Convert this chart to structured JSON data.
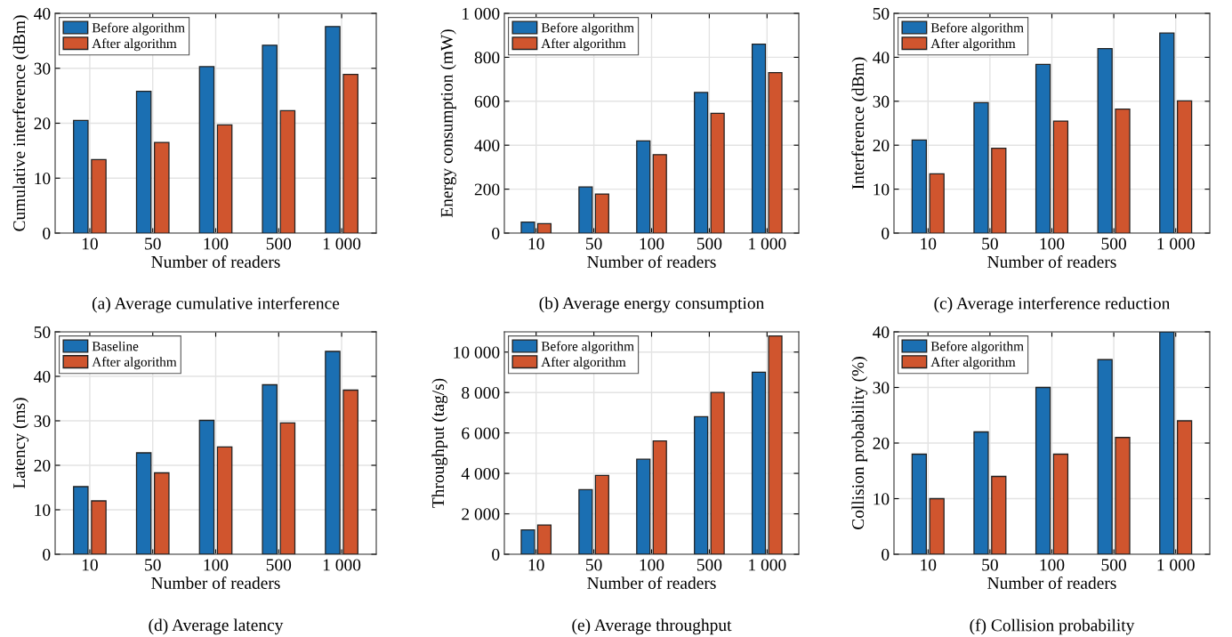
{
  "chart_data": [
    {
      "type": "bar",
      "categories": [
        "10",
        "50",
        "100",
        "500",
        "1 000"
      ],
      "xlabel": "Number of readers",
      "ylabel": "Cumulative interference (dBm)",
      "annotations": [
        "(a) Average cumulative interference"
      ],
      "ylim": [
        0,
        40
      ],
      "yticks": [
        0,
        10,
        20,
        30,
        40
      ],
      "grid": true,
      "legend": "top left",
      "series": [
        {
          "name": "Before algorithm",
          "color": "#1b6fb2",
          "values": [
            20.5,
            25.8,
            30.3,
            34.2,
            37.6
          ]
        },
        {
          "name": "After algorithm",
          "color": "#d0552e",
          "values": [
            13.4,
            16.5,
            19.7,
            22.3,
            28.9
          ]
        }
      ]
    },
    {
      "type": "bar",
      "categories": [
        "10",
        "50",
        "100",
        "500",
        "1 000"
      ],
      "xlabel": "Number of readers",
      "ylabel": "Energy consumption (mW)",
      "annotations": [
        "(b) Average energy consumption"
      ],
      "ylim": [
        0,
        1000
      ],
      "yticks": [
        0,
        200,
        400,
        600,
        800,
        {
          "value": 1000,
          "label": "1 000"
        }
      ],
      "grid": true,
      "legend": "top left",
      "series": [
        {
          "name": "Before algorithm",
          "color": "#1b6fb2",
          "values": [
            50,
            210,
            420,
            640,
            860
          ]
        },
        {
          "name": "After algorithm",
          "color": "#d0552e",
          "values": [
            43,
            178,
            357,
            545,
            730
          ]
        }
      ]
    },
    {
      "type": "bar",
      "categories": [
        "10",
        "50",
        "100",
        "500",
        "1 000"
      ],
      "xlabel": "Number of readers",
      "ylabel": "Interference (dBm)",
      "annotations": [
        "(c) Average interference reduction"
      ],
      "ylim": [
        0,
        50
      ],
      "yticks": [
        0,
        10,
        20,
        30,
        40,
        50
      ],
      "grid": true,
      "legend": "top left",
      "series": [
        {
          "name": "Before algorithm",
          "color": "#1b6fb2",
          "values": [
            21.2,
            29.7,
            38.4,
            42.0,
            45.5
          ]
        },
        {
          "name": "After algorithm",
          "color": "#d0552e",
          "values": [
            13.5,
            19.3,
            25.5,
            28.2,
            30.1
          ]
        }
      ]
    },
    {
      "type": "bar",
      "categories": [
        "10",
        "50",
        "100",
        "500",
        "1 000"
      ],
      "xlabel": "Number of readers",
      "ylabel": "Latency (ms)",
      "annotations": [
        "(d) Average latency"
      ],
      "ylim": [
        0,
        50
      ],
      "yticks": [
        0,
        10,
        20,
        30,
        40,
        50
      ],
      "grid": true,
      "legend": "top left",
      "series": [
        {
          "name": "Baseline",
          "color": "#1b6fb2",
          "values": [
            15.2,
            22.8,
            30.1,
            38.1,
            45.6
          ]
        },
        {
          "name": "After algorithm",
          "color": "#d0552e",
          "values": [
            12.0,
            18.3,
            24.1,
            29.5,
            36.9
          ]
        }
      ]
    },
    {
      "type": "bar",
      "categories": [
        "10",
        "50",
        "100",
        "500",
        "1 000"
      ],
      "xlabel": "Number of readers",
      "ylabel": "Throughput (tag/s)",
      "annotations": [
        "(e) Average throughput"
      ],
      "ylim": [
        0,
        11000
      ],
      "yticks": [
        0,
        {
          "value": 2000,
          "label": "2 000"
        },
        {
          "value": 4000,
          "label": "4 000"
        },
        {
          "value": 6000,
          "label": "6 000"
        },
        {
          "value": 8000,
          "label": "8 000"
        },
        {
          "value": 10000,
          "label": "10 000"
        }
      ],
      "grid": true,
      "legend": "top left",
      "series": [
        {
          "name": "Before algorithm",
          "color": "#1b6fb2",
          "values": [
            1200,
            3200,
            4700,
            6800,
            9000
          ]
        },
        {
          "name": "After algorithm",
          "color": "#d0552e",
          "values": [
            1450,
            3900,
            5600,
            8000,
            10800
          ]
        }
      ]
    },
    {
      "type": "bar",
      "categories": [
        "10",
        "50",
        "100",
        "500",
        "1 000"
      ],
      "xlabel": "Number of readers",
      "ylabel": "Collision probability (%)",
      "annotations": [
        "(f) Collision probability"
      ],
      "ylim": [
        0,
        40
      ],
      "yticks": [
        0,
        10,
        20,
        30,
        40
      ],
      "grid": true,
      "legend": "top left",
      "series": [
        {
          "name": "Before algorithm",
          "color": "#1b6fb2",
          "values": [
            18,
            22,
            30,
            35,
            40
          ]
        },
        {
          "name": "After algorithm",
          "color": "#d0552e",
          "values": [
            10,
            14,
            18,
            21,
            24
          ]
        }
      ]
    }
  ]
}
